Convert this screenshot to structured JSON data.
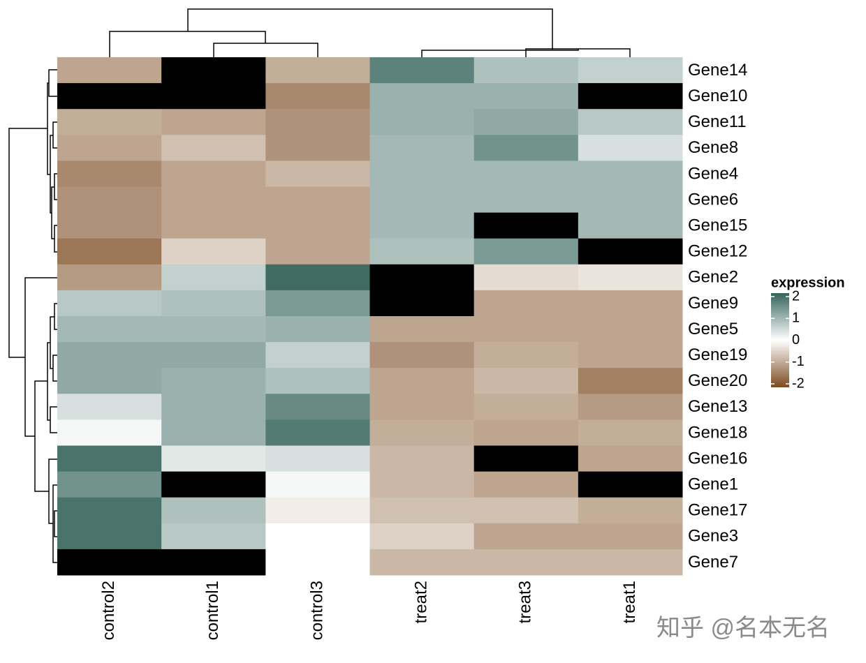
{
  "chart_data": {
    "type": "heatmap",
    "rows": [
      "Gene14",
      "Gene10",
      "Gene11",
      "Gene8",
      "Gene4",
      "Gene6",
      "Gene15",
      "Gene12",
      "Gene2",
      "Gene9",
      "Gene5",
      "Gene19",
      "Gene20",
      "Gene13",
      "Gene18",
      "Gene16",
      "Gene1",
      "Gene17",
      "Gene3",
      "Gene7"
    ],
    "columns": [
      "control2",
      "control1",
      "control3",
      "treat2",
      "treat3",
      "treat1"
    ],
    "values": [
      [
        -1.0,
        null,
        -0.9,
        1.6,
        0.8,
        0.6
      ],
      [
        null,
        null,
        -1.3,
        1.0,
        1.0,
        null
      ],
      [
        -0.9,
        -1.0,
        -1.2,
        1.0,
        1.1,
        0.7
      ],
      [
        -1.0,
        -0.7,
        -1.2,
        0.9,
        1.4,
        0.4
      ],
      [
        -1.3,
        -1.0,
        -0.8,
        0.9,
        0.9,
        0.9
      ],
      [
        -1.2,
        -1.0,
        -1.0,
        0.9,
        0.9,
        0.9
      ],
      [
        -1.2,
        -1.0,
        -1.0,
        0.9,
        null,
        0.9
      ],
      [
        -1.5,
        -0.5,
        -1.0,
        0.8,
        1.3,
        null
      ],
      [
        -1.1,
        0.6,
        1.9,
        null,
        -0.4,
        -0.3
      ],
      [
        0.7,
        0.8,
        1.3,
        null,
        -1.0,
        -1.0
      ],
      [
        0.9,
        0.9,
        1.0,
        -1.0,
        -1.0,
        -1.0
      ],
      [
        1.1,
        1.1,
        0.6,
        -1.2,
        -0.9,
        -1.0
      ],
      [
        1.1,
        1.0,
        0.8,
        -1.0,
        -0.8,
        -1.4
      ],
      [
        0.4,
        1.0,
        1.5,
        -1.0,
        -0.9,
        -1.1
      ],
      [
        0.1,
        1.0,
        1.7,
        -0.9,
        -1.0,
        -0.9
      ],
      [
        1.8,
        0.3,
        0.4,
        -0.8,
        null,
        -1.0
      ],
      [
        1.4,
        null,
        0.1,
        -0.8,
        -1.0,
        null
      ],
      [
        1.8,
        0.8,
        -0.2,
        -0.7,
        -0.7,
        -0.9
      ],
      [
        1.8,
        0.7,
        0.0,
        -0.5,
        -1.0,
        -1.0
      ],
      [
        null,
        null,
        0.0,
        -0.8,
        -0.8,
        -0.8
      ]
    ],
    "clim": [
      -2,
      2
    ],
    "colors": [
      "#7a4a1f",
      "#ffffff",
      "#35635a"
    ],
    "na_color": "#000000",
    "legend": {
      "title": "expression",
      "ticks": [
        2,
        1,
        0,
        -1,
        -2
      ]
    },
    "watermark": "知乎 @名本无名"
  }
}
